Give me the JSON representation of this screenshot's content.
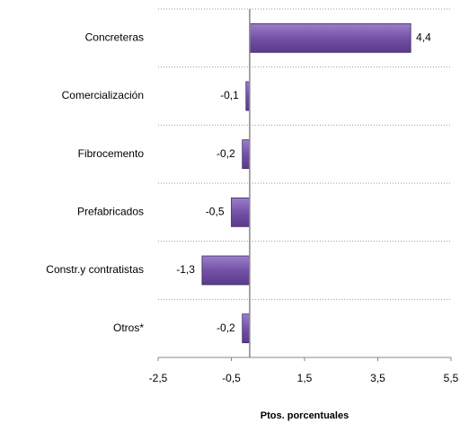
{
  "chart_data": {
    "type": "hbar",
    "categories": [
      "Concreteras",
      "Comercialización",
      "Fibrocemento",
      "Prefabricados",
      "Constr.y contratistas",
      "Otros*"
    ],
    "values": [
      4.4,
      -0.1,
      -0.2,
      -0.5,
      -1.3,
      -0.2
    ],
    "value_labels": [
      "4,4",
      "-0,1",
      "-0,2",
      "-0,5",
      "-1,3",
      "-0,2"
    ],
    "color": "#7452a8",
    "xlim": [
      -2.5,
      5.5
    ],
    "xticks": [
      {
        "value": -2.5,
        "label": "-2,5"
      },
      {
        "value": -0.5,
        "label": "-0,5"
      },
      {
        "value": 1.5,
        "label": "1,5"
      },
      {
        "value": 3.5,
        "label": "3,5"
      },
      {
        "value": 5.5,
        "label": "5,5"
      }
    ],
    "xlabel": "Ptos. porcentuales"
  }
}
